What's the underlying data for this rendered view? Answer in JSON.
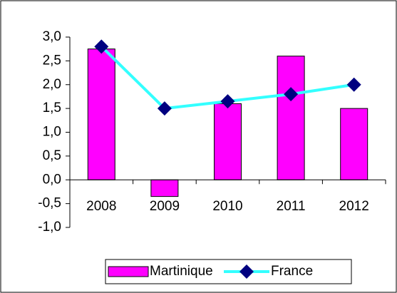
{
  "chart_data": {
    "type": "bar",
    "categories": [
      "2008",
      "2009",
      "2010",
      "2011",
      "2012"
    ],
    "series": [
      {
        "name": "Martinique",
        "type": "bar",
        "color": "#ff00ff",
        "values": [
          2.75,
          -0.35,
          1.6,
          2.6,
          1.5
        ]
      },
      {
        "name": "France",
        "type": "line",
        "color": "#33ffff",
        "marker_color": "#000080",
        "values": [
          2.8,
          1.5,
          1.65,
          1.8,
          2.0
        ]
      }
    ],
    "ylim": [
      -1,
      3
    ],
    "yticks": [
      {
        "value": -1,
        "label": "-1,0"
      },
      {
        "value": -0.5,
        "label": "-0,5"
      },
      {
        "value": 0,
        "label": "0,0"
      },
      {
        "value": 0.5,
        "label": "0,5"
      },
      {
        "value": 1,
        "label": "1,0"
      },
      {
        "value": 1.5,
        "label": "1,5"
      },
      {
        "value": 2,
        "label": "2,0"
      },
      {
        "value": 2.5,
        "label": "2,5"
      },
      {
        "value": 3,
        "label": "3,0"
      }
    ],
    "grid": false,
    "legend": "bottom"
  }
}
